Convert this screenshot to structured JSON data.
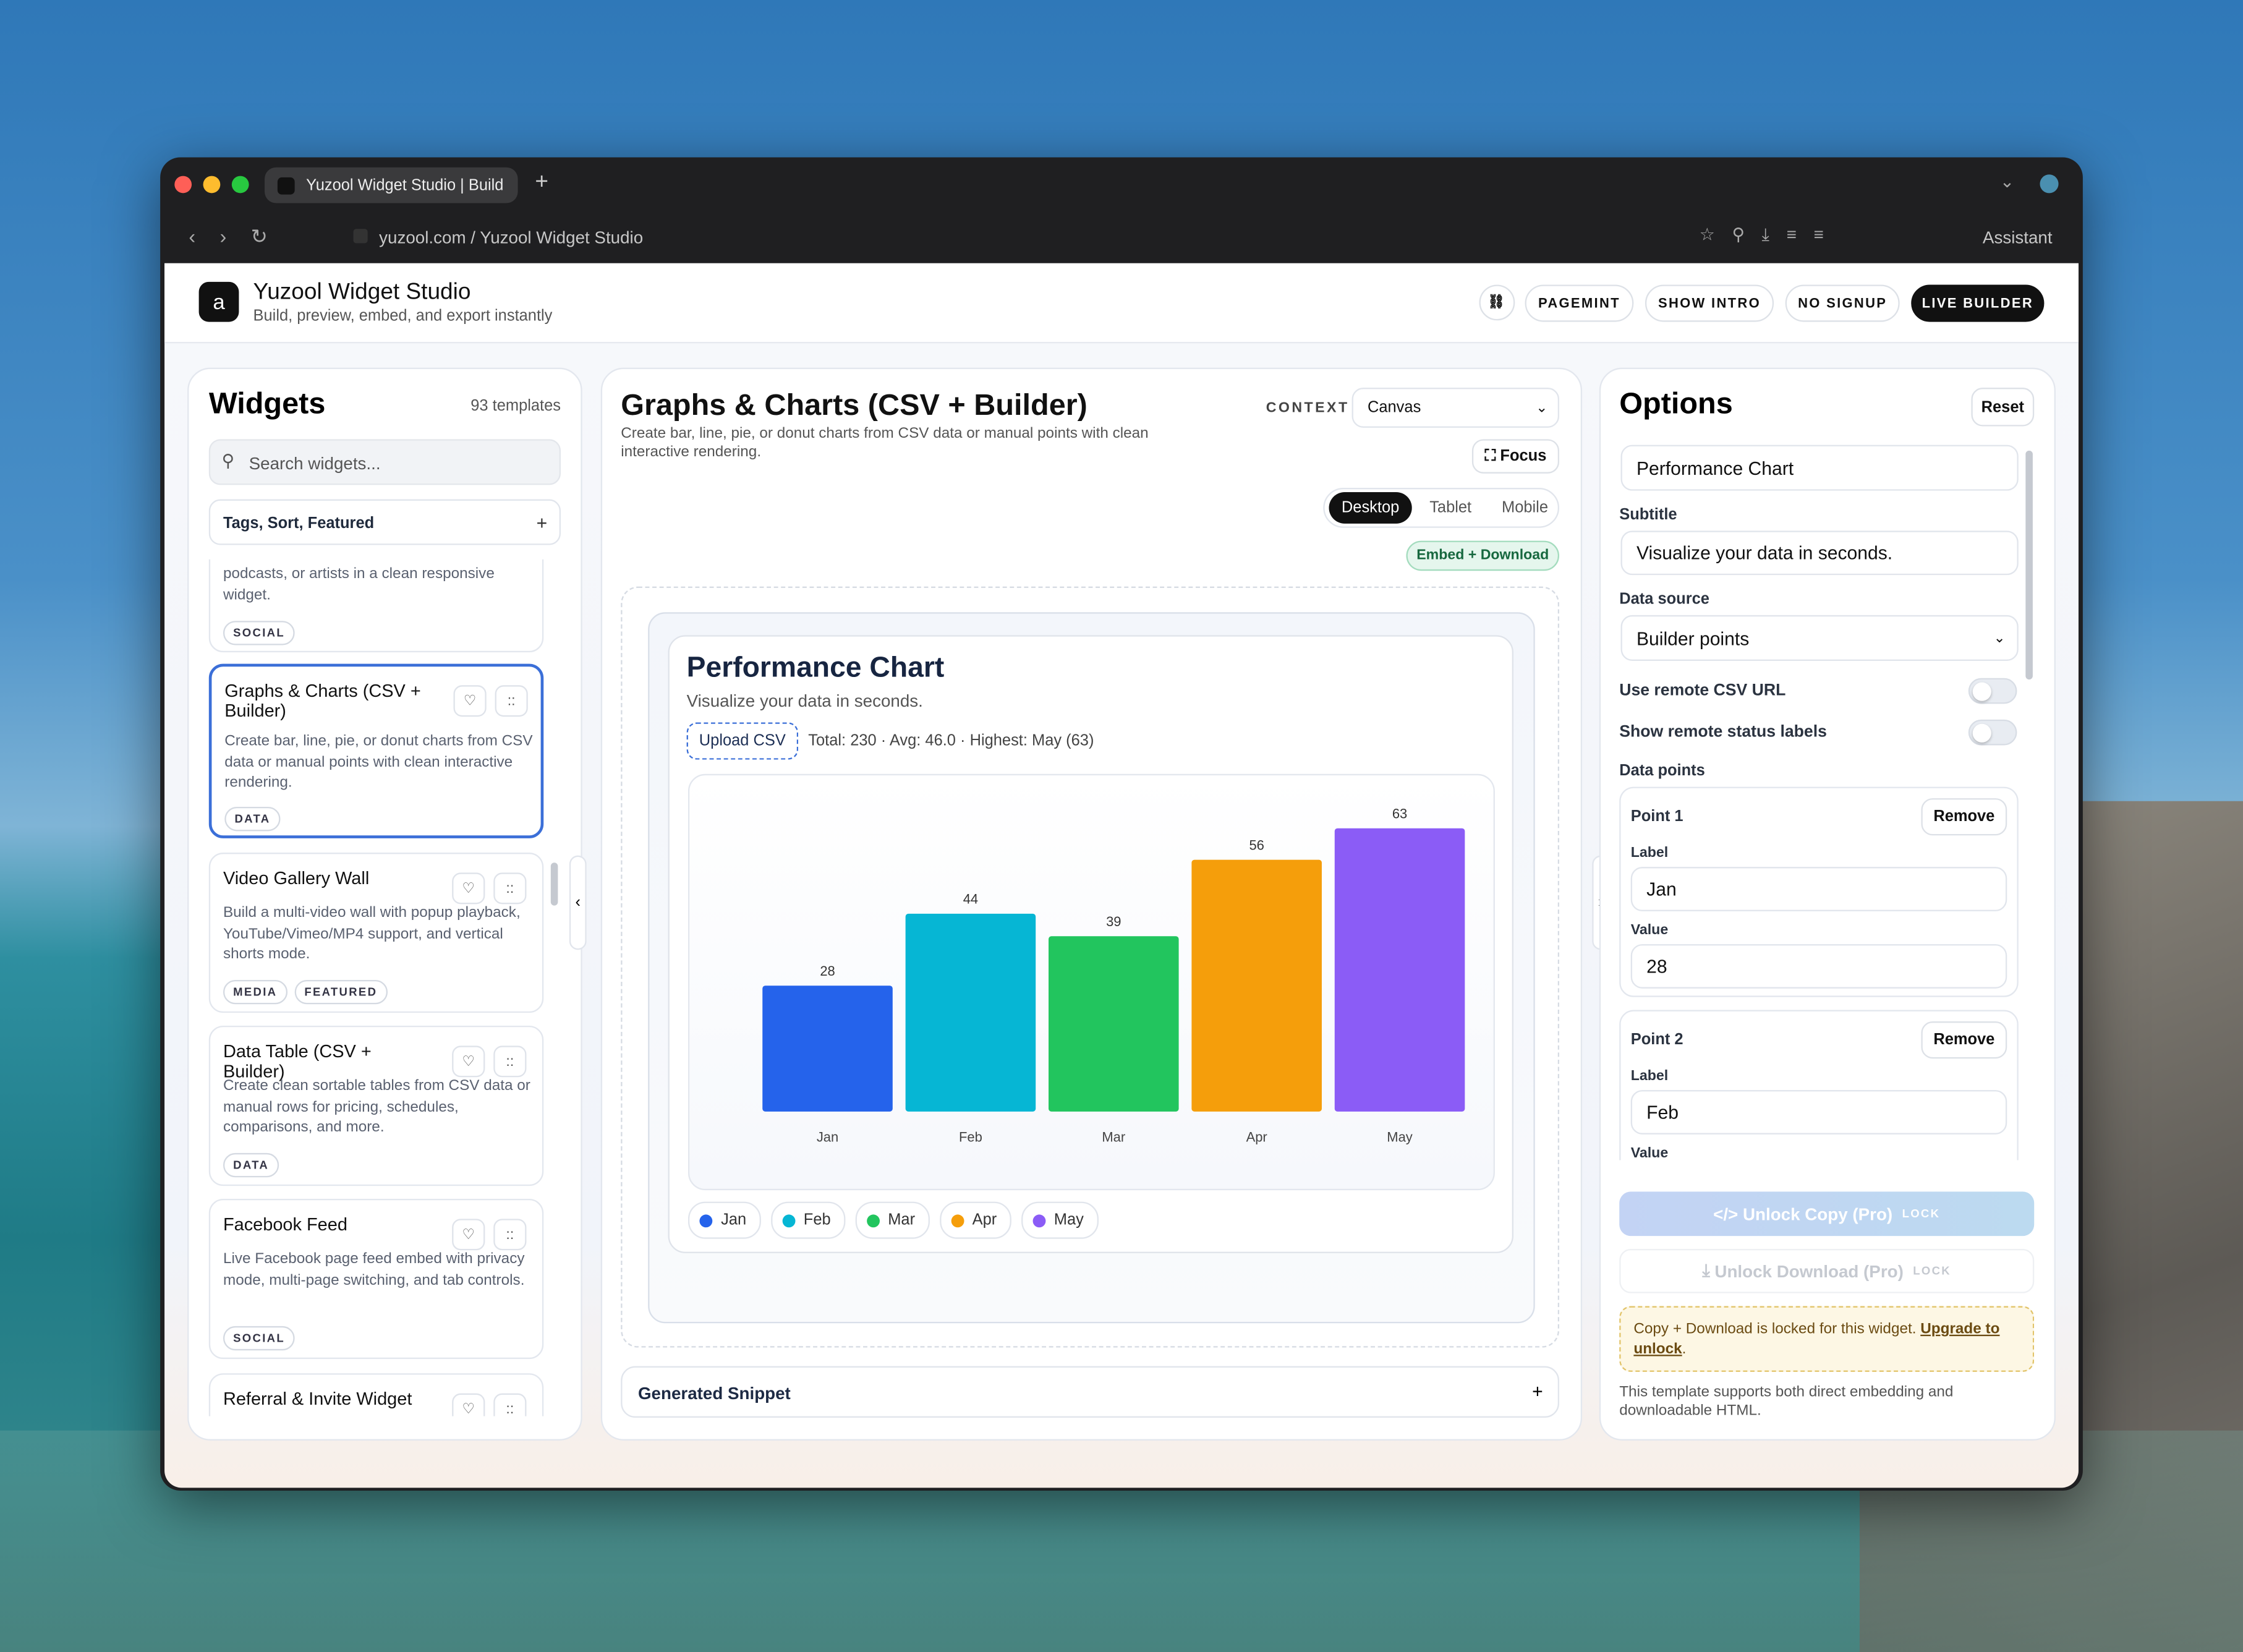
{
  "browser": {
    "tab_title": "Yuzool Widget Studio | Build",
    "url": "yuzool.com / Yuzool Widget Studio",
    "assistant": "Assistant"
  },
  "header": {
    "title": "Yuzool Widget Studio",
    "subtitle": "Build, preview, embed, and export instantly",
    "buttons": [
      "PAGEMINT",
      "SHOW INTRO",
      "NO SIGNUP",
      "LIVE BUILDER"
    ]
  },
  "widgets": {
    "title": "Widgets",
    "count": "93 templates",
    "search_placeholder": "Search widgets...",
    "filter": "Tags, Sort, Featured",
    "filter_icon": "+",
    "partial": {
      "description": "podcasts, or artists in a clean responsive widget.",
      "tags": [
        "SOCIAL"
      ]
    },
    "items": [
      {
        "name": "Graphs & Charts (CSV + Builder)",
        "description": "Create bar, line, pie, or donut charts from CSV data or manual points with clean interactive rendering.",
        "tags": [
          "DATA"
        ]
      },
      {
        "name": "Video Gallery Wall",
        "description": "Build a multi-video wall with popup playback, YouTube/Vimeo/MP4 support, and vertical shorts mode.",
        "tags": [
          "MEDIA",
          "FEATURED"
        ]
      },
      {
        "name": "Data Table (CSV + Builder)",
        "description": "Create clean sortable tables from CSV data or manual rows for pricing, schedules, comparisons, and more.",
        "tags": [
          "DATA"
        ]
      },
      {
        "name": "Facebook Feed",
        "description": "Live Facebook page feed embed with privacy mode, multi-page switching, and tab controls.",
        "tags": [
          "SOCIAL"
        ]
      },
      {
        "name": "Referral & Invite Widget",
        "tags": []
      }
    ],
    "grip": "::"
  },
  "center": {
    "title": "Graphs & Charts (CSV + Builder)",
    "description": "Create bar, line, pie, or donut charts from CSV data or manual points with clean interactive rendering.",
    "context_label": "CONTEXT",
    "context_value": "Canvas",
    "focus": "Focus",
    "devices": [
      "Desktop",
      "Tablet",
      "Mobile"
    ],
    "badge": "Embed + Download",
    "snippet": "Generated Snippet",
    "snippet_icon": "+"
  },
  "chart_data": {
    "type": "bar",
    "title": "Performance Chart",
    "subtitle": "Visualize your data in seconds.",
    "upload": "Upload CSV",
    "summary": "Total: 230 · Avg: 46.0 · Highest: May (63)",
    "categories": [
      "Jan",
      "Feb",
      "Mar",
      "Apr",
      "May"
    ],
    "values": [
      28,
      44,
      39,
      56,
      63
    ],
    "colors": [
      "#2563eb",
      "#06b6d4",
      "#22c55e",
      "#f59e0b",
      "#8b5cf6"
    ],
    "ylim": [
      0,
      70
    ],
    "legend": "bottom-left"
  },
  "options": {
    "title": "Options",
    "reset": "Reset",
    "subtitle_label": "Subtitle",
    "data_source_label": "Data source",
    "data_source_value": "Builder points",
    "toggles": [
      "Use remote CSV URL",
      "Show remote status labels"
    ],
    "data_points_label": "Data points",
    "points": [
      {
        "name": "Point 1",
        "remove": "Remove",
        "label_label": "Label",
        "value_label": "Value"
      },
      {
        "name": "Point 2",
        "remove": "Remove",
        "label_label": "Label",
        "value_label": "Value"
      }
    ],
    "unlock_copy": "Unlock Copy (Pro)",
    "unlock_download": "Unlock Download (Pro)",
    "lock": "LOCK",
    "notice": "Copy + Download is locked for this widget.",
    "upgrade": "Upgrade to unlock",
    "notice_end": ".",
    "note": "This template supports both direct embedding and downloadable HTML."
  }
}
